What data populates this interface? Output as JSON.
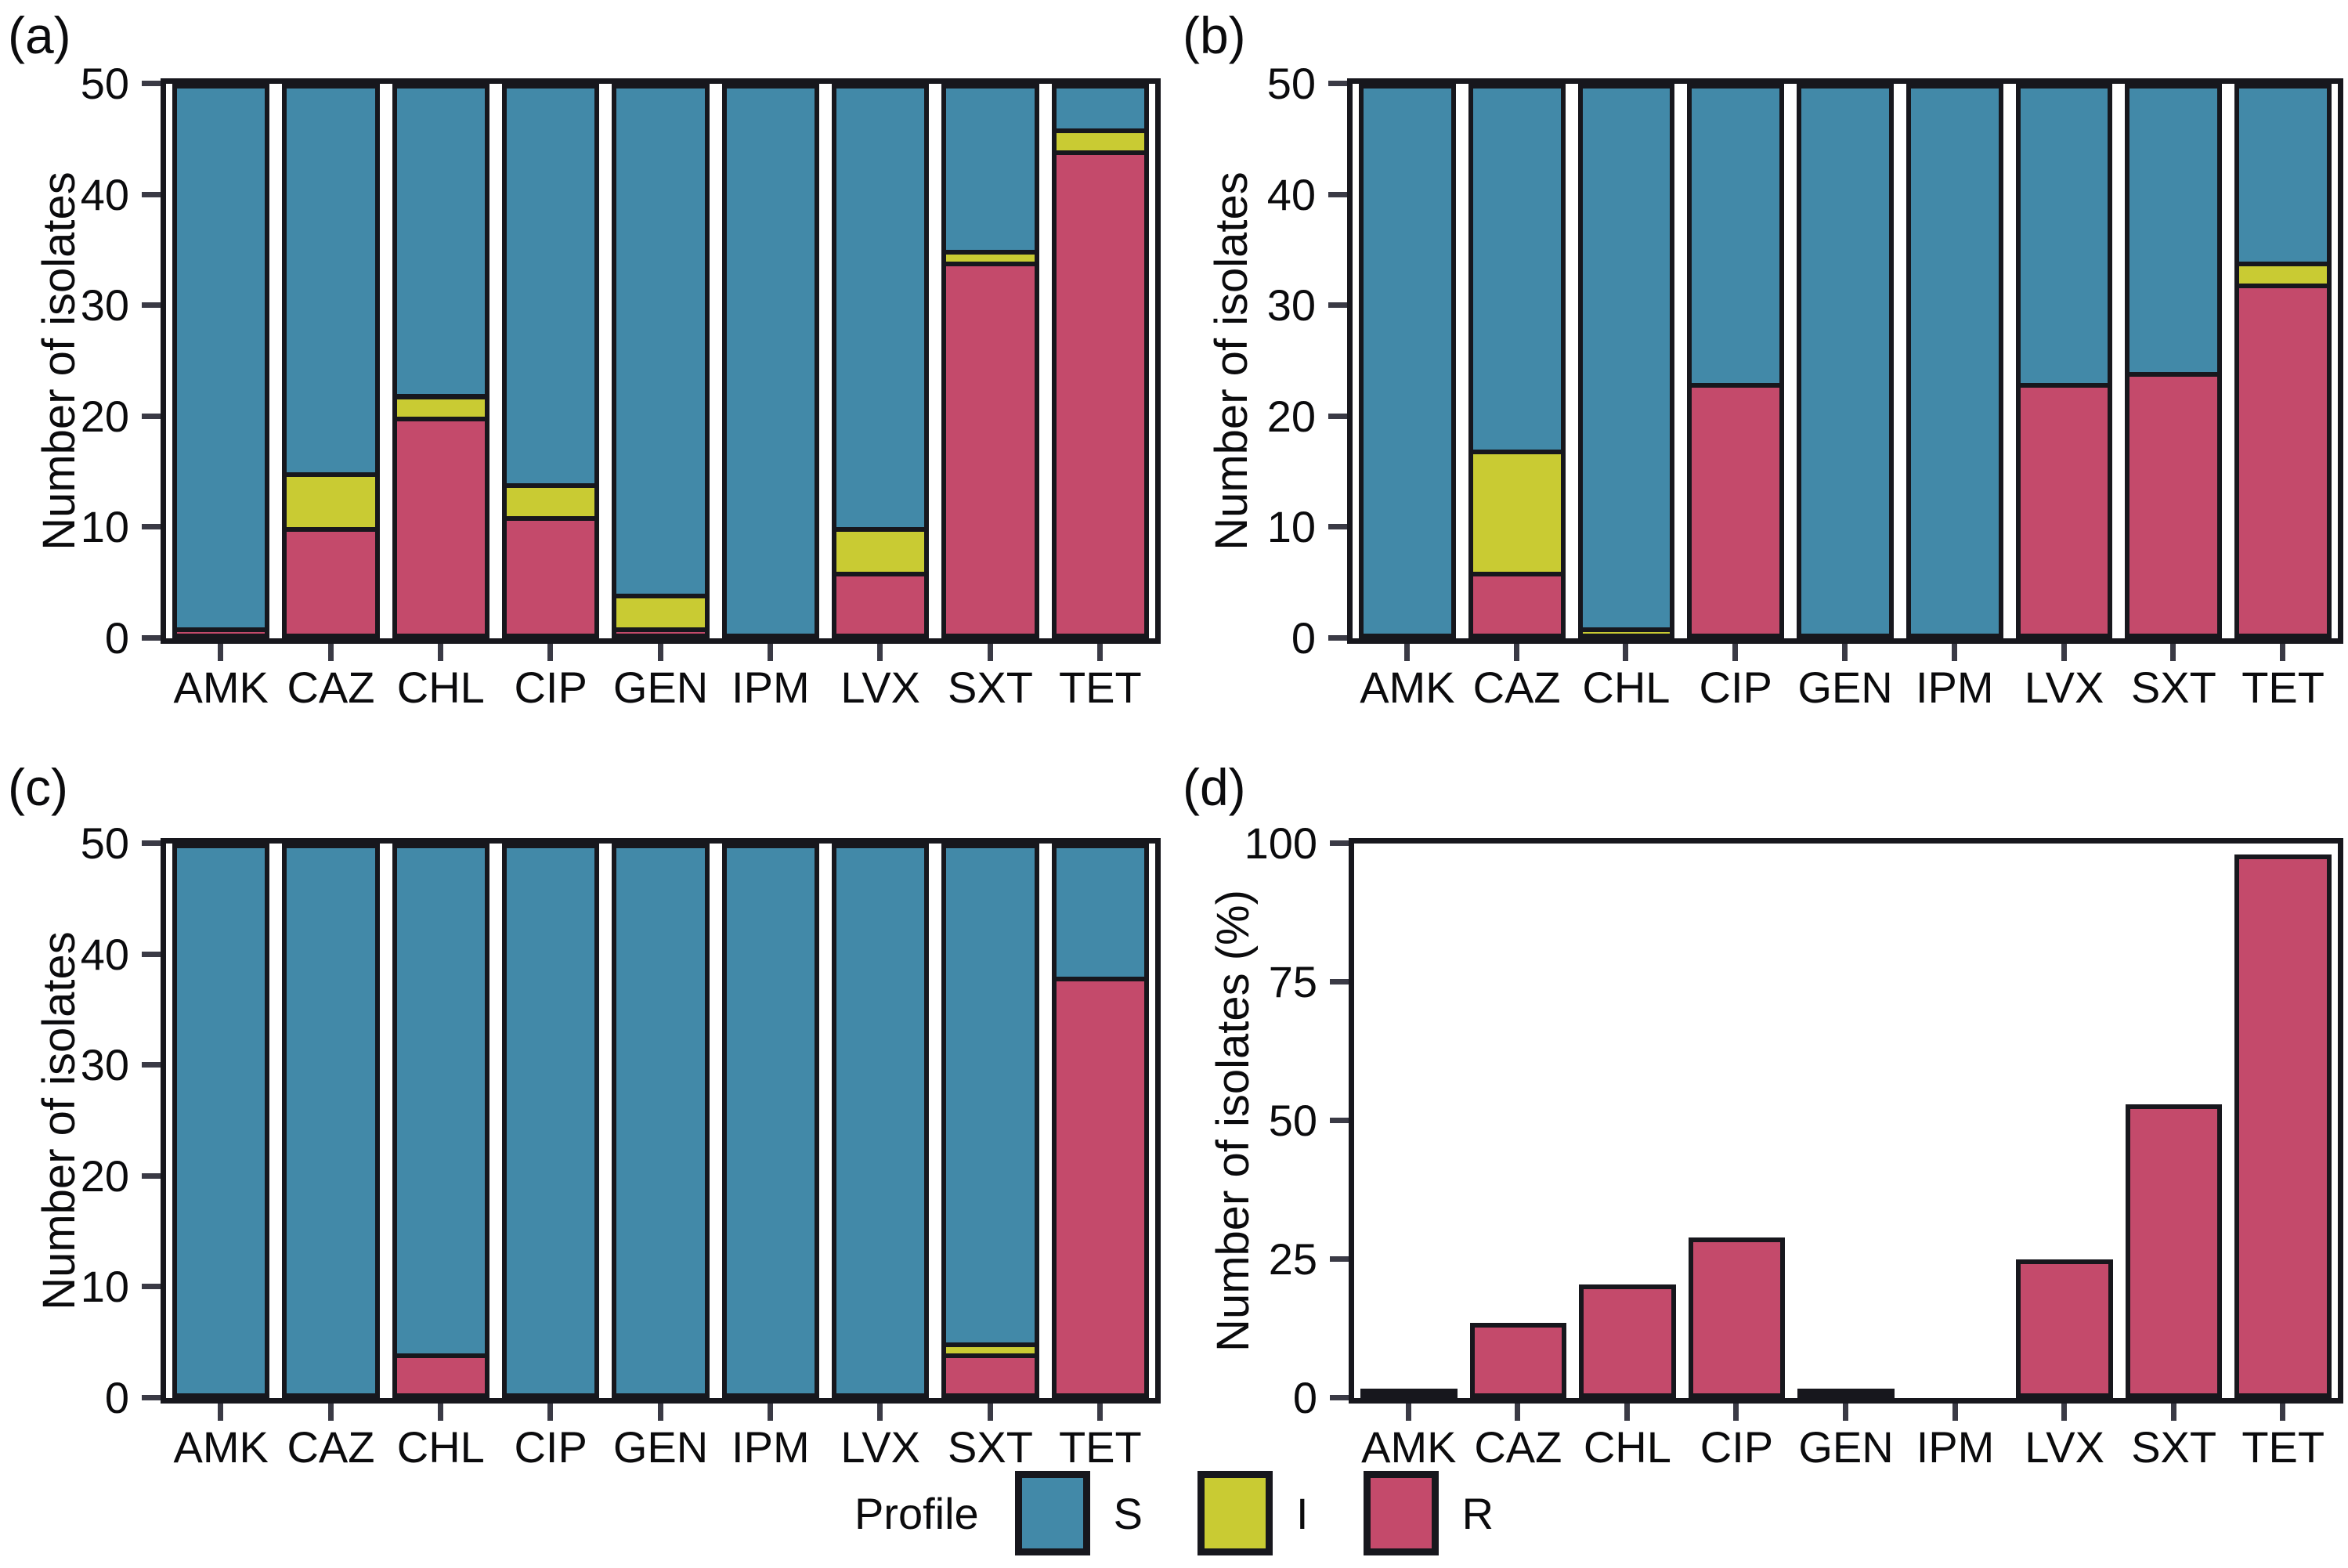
{
  "figure": {
    "background": "#ffffff"
  },
  "colors": {
    "S": "#4289a8",
    "I": "#c9cb33",
    "R": "#c44a6b",
    "outline": "#17171d",
    "tick": "#3a3a45",
    "text": "#0b0b0d"
  },
  "legend": {
    "title": "Profile",
    "entries": [
      {
        "label": "S",
        "key": "S"
      },
      {
        "label": "I",
        "key": "I"
      },
      {
        "label": "R",
        "key": "R"
      }
    ]
  },
  "chart_data": [
    {
      "id": "a",
      "label": "(a)",
      "type": "bar",
      "stacked": true,
      "title": "",
      "xlabel": "",
      "ylabel": "Number of isolates",
      "ylim": [
        0,
        50
      ],
      "yticks": [
        0,
        10,
        20,
        30,
        40,
        50
      ],
      "grid": false,
      "categories": [
        "AMK",
        "CAZ",
        "CHL",
        "CIP",
        "GEN",
        "IPM",
        "LVX",
        "SXT",
        "TET"
      ],
      "series": [
        {
          "name": "R",
          "values": [
            1,
            10,
            20,
            11,
            1,
            0,
            6,
            34,
            44
          ]
        },
        {
          "name": "I",
          "values": [
            0,
            5,
            2,
            3,
            3,
            0,
            4,
            1,
            2
          ]
        },
        {
          "name": "S",
          "values": [
            49,
            35,
            28,
            36,
            46,
            50,
            40,
            15,
            4
          ]
        }
      ]
    },
    {
      "id": "b",
      "label": "(b)",
      "type": "bar",
      "stacked": true,
      "title": "",
      "xlabel": "",
      "ylabel": "Number of isolates",
      "ylim": [
        0,
        50
      ],
      "yticks": [
        0,
        10,
        20,
        30,
        40,
        50
      ],
      "grid": false,
      "categories": [
        "AMK",
        "CAZ",
        "CHL",
        "CIP",
        "GEN",
        "IPM",
        "LVX",
        "SXT",
        "TET"
      ],
      "series": [
        {
          "name": "R",
          "values": [
            0,
            6,
            0,
            23,
            0,
            0,
            23,
            24,
            32
          ]
        },
        {
          "name": "I",
          "values": [
            0,
            11,
            1,
            0,
            0,
            0,
            0,
            0,
            2
          ]
        },
        {
          "name": "S",
          "values": [
            50,
            33,
            49,
            27,
            50,
            50,
            27,
            26,
            16
          ]
        }
      ]
    },
    {
      "id": "c",
      "label": "(c)",
      "type": "bar",
      "stacked": true,
      "title": "",
      "xlabel": "",
      "ylabel": "Number of isolates",
      "ylim": [
        0,
        50
      ],
      "yticks": [
        0,
        10,
        20,
        30,
        40,
        50
      ],
      "grid": false,
      "categories": [
        "AMK",
        "CAZ",
        "CHL",
        "CIP",
        "GEN",
        "IPM",
        "LVX",
        "SXT",
        "TET"
      ],
      "series": [
        {
          "name": "R",
          "values": [
            0,
            0,
            4,
            0,
            0,
            0,
            0,
            4,
            38
          ]
        },
        {
          "name": "I",
          "values": [
            0,
            0,
            0,
            0,
            0,
            0,
            0,
            1,
            0
          ]
        },
        {
          "name": "S",
          "values": [
            50,
            50,
            46,
            50,
            50,
            50,
            50,
            45,
            12
          ]
        }
      ]
    },
    {
      "id": "d",
      "label": "(d)",
      "type": "bar",
      "stacked": false,
      "title": "",
      "xlabel": "",
      "ylabel": "Number of isolates (%)",
      "ylim": [
        0,
        100
      ],
      "yticks": [
        0,
        25,
        50,
        75,
        100
      ],
      "grid": false,
      "categories": [
        "AMK",
        "CAZ",
        "CHL",
        "CIP",
        "GEN",
        "IPM",
        "LVX",
        "SXT",
        "TET"
      ],
      "series": [
        {
          "name": "R",
          "values": [
            0.7,
            13.5,
            20.5,
            29,
            0.7,
            0,
            25,
            53,
            98
          ]
        }
      ]
    }
  ]
}
